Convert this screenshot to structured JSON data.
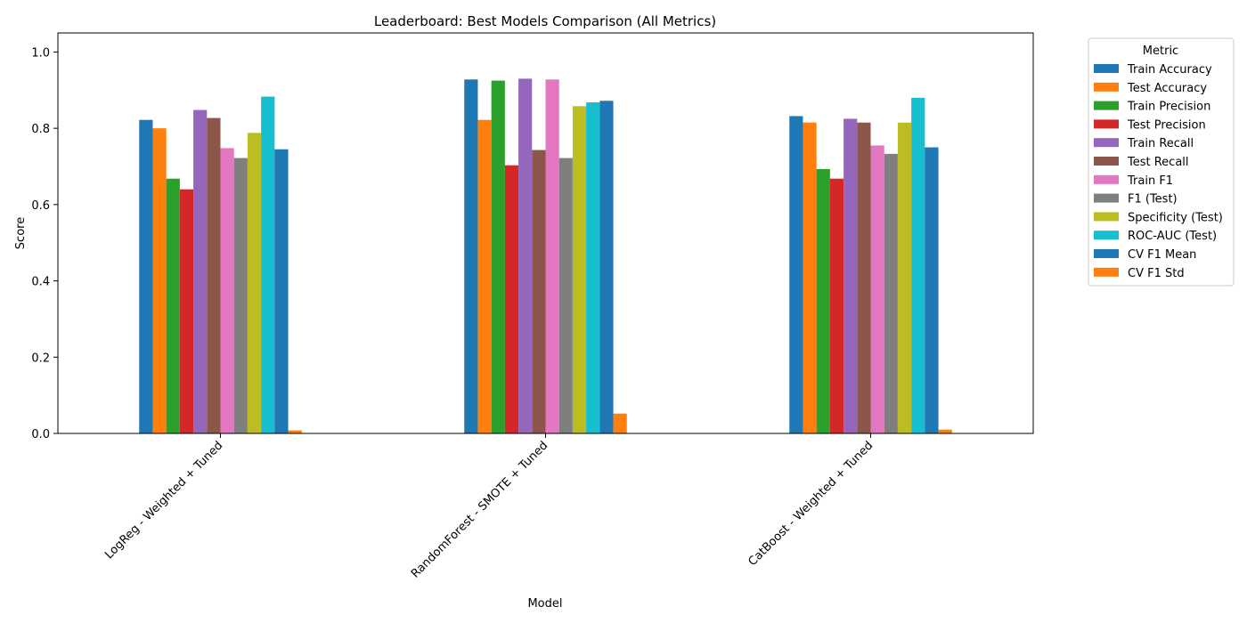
{
  "chart_data": {
    "type": "bar",
    "title": "Leaderboard: Best Models Comparison (All Metrics)",
    "xlabel": "Model",
    "ylabel": "Score",
    "ylim": [
      0,
      1.05
    ],
    "yticks": [
      "0.0",
      "0.2",
      "0.4",
      "0.6",
      "0.8",
      "1.0"
    ],
    "grid": false,
    "legend_title": "Metric",
    "legend_position": "outside right, top",
    "categories": [
      "LogReg - Weighted + Tuned",
      "RandomForest - SMOTE + Tuned",
      "CatBoost - Weighted + Tuned"
    ],
    "series": [
      {
        "name": "Train Accuracy",
        "color": "#1f77b4",
        "values": [
          0.822,
          0.928,
          0.832
        ]
      },
      {
        "name": "Test Accuracy",
        "color": "#ff7f0e",
        "values": [
          0.8,
          0.822,
          0.815
        ]
      },
      {
        "name": "Train Precision",
        "color": "#2ca02c",
        "values": [
          0.668,
          0.925,
          0.693
        ]
      },
      {
        "name": "Test Precision",
        "color": "#d62728",
        "values": [
          0.64,
          0.703,
          0.668
        ]
      },
      {
        "name": "Train Recall",
        "color": "#9467bd",
        "values": [
          0.848,
          0.93,
          0.825
        ]
      },
      {
        "name": "Test Recall",
        "color": "#8c564b",
        "values": [
          0.827,
          0.743,
          0.815
        ]
      },
      {
        "name": "Train F1",
        "color": "#e377c2",
        "values": [
          0.748,
          0.928,
          0.755
        ]
      },
      {
        "name": "F1 (Test)",
        "color": "#7f7f7f",
        "values": [
          0.722,
          0.722,
          0.733
        ]
      },
      {
        "name": "Specificity (Test)",
        "color": "#bcbd22",
        "values": [
          0.788,
          0.858,
          0.815
        ]
      },
      {
        "name": "ROC-AUC (Test)",
        "color": "#17becf",
        "values": [
          0.883,
          0.868,
          0.88
        ]
      },
      {
        "name": "CV F1 Mean",
        "color": "#1f77b4",
        "values": [
          0.745,
          0.872,
          0.75
        ]
      },
      {
        "name": "CV F1 Std",
        "color": "#ff7f0e",
        "values": [
          0.008,
          0.052,
          0.01
        ]
      }
    ]
  }
}
